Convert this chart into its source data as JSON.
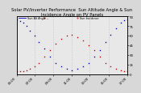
{
  "title": "Solar PV/Inverter Performance  Sun Altitude Angle & Sun Incidence Angle on PV Panels",
  "legend_blue": "Sun Alt Angle --",
  "legend_red": "Sun Incidence",
  "bg_color": "#d8d8d8",
  "plot_bg": "#e8e8e8",
  "blue_color": "#0000cc",
  "red_color": "#cc0000",
  "grid_color": "#aaaaaa",
  "title_fontsize": 3.8,
  "tick_fontsize": 2.8,
  "y_ticks_right": [
    0,
    15,
    30,
    45,
    60,
    75,
    90
  ],
  "ylim": [
    0,
    90
  ],
  "xlim": [
    0,
    100
  ],
  "blue_x": [
    0,
    3,
    6,
    9,
    12,
    16,
    20,
    25,
    30,
    35,
    40,
    45,
    50,
    55,
    60,
    65,
    70,
    75,
    80,
    85,
    90,
    94,
    97,
    100
  ],
  "blue_y": [
    85,
    83,
    80,
    75,
    68,
    60,
    50,
    40,
    28,
    18,
    12,
    8,
    6,
    8,
    12,
    18,
    28,
    38,
    50,
    62,
    72,
    80,
    84,
    85
  ],
  "red_x": [
    0,
    3,
    6,
    9,
    12,
    16,
    20,
    25,
    30,
    35,
    40,
    45,
    50,
    55,
    60,
    65,
    70,
    75,
    80,
    85,
    90,
    94,
    97,
    100
  ],
  "red_y": [
    5,
    5,
    5,
    6,
    8,
    12,
    18,
    28,
    38,
    48,
    55,
    60,
    62,
    58,
    52,
    45,
    38,
    28,
    18,
    12,
    8,
    6,
    5,
    5
  ],
  "x_tick_positions": [
    0,
    16,
    33,
    50,
    66,
    83,
    100
  ],
  "x_tick_labels": [
    "05:00",
    "07:00",
    "09:00",
    "11:00",
    "13:00",
    "15:00",
    "17:00"
  ]
}
